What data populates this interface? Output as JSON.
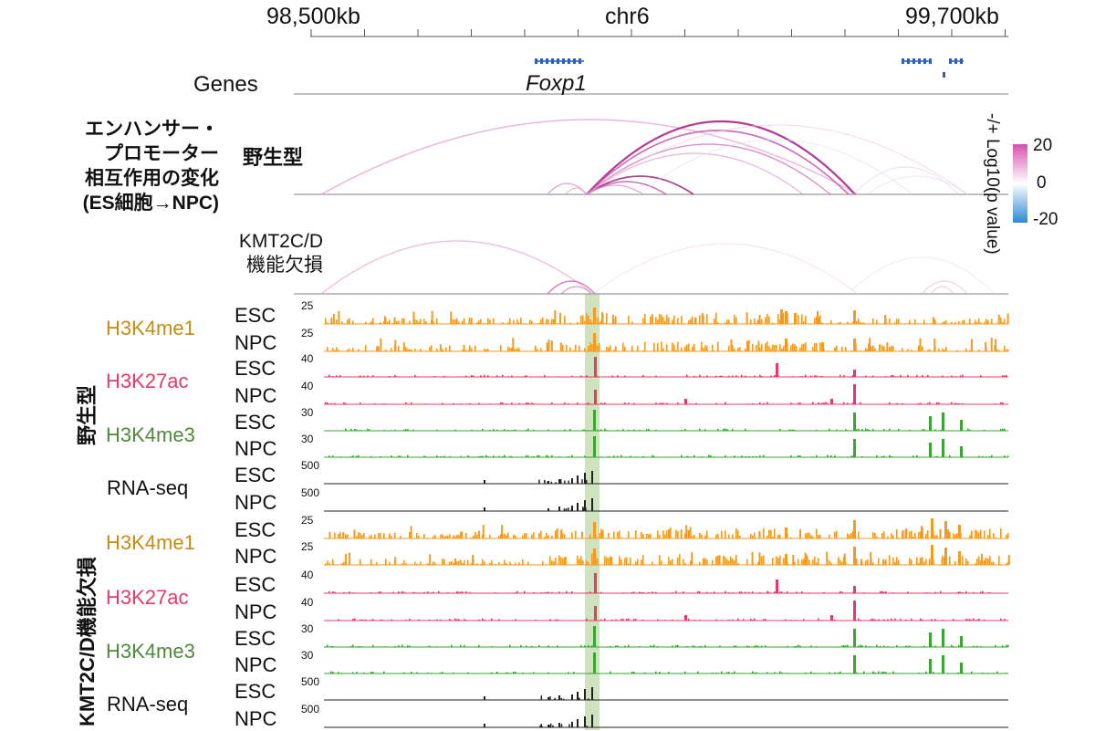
{
  "chrom": "chr6",
  "coords": {
    "left": "98,500kb",
    "right": "99,700kb"
  },
  "genes": {
    "track_label": "Genes",
    "gene_name": "Foxp1"
  },
  "title": [
    "エンハンサー・",
    "プロモーター",
    "相互作用の変化",
    "(ES細胞→NPC)"
  ],
  "arc_tracks": {
    "wt_label": "野生型",
    "ko_label": [
      "KMT2C/D",
      "機能欠損"
    ]
  },
  "legend": {
    "title": "-/+ Log10(p value)",
    "ticks": [
      "20",
      "0",
      "-20"
    ],
    "colors": {
      "pos": "#d84fb0",
      "mid": "#ffffff",
      "neg": "#2f88d6"
    }
  },
  "groups": {
    "wt": "野生型",
    "ko": "KMT2C/D機能欠損"
  },
  "colors": {
    "H3K4me1": "#f29a22",
    "H3K27ac": "#e8386a",
    "H3K4me3": "#3aa532",
    "RNA-seq": "#222222",
    "highlight": "#cfe3bf"
  },
  "cells": {
    "esc": "ESC",
    "npc": "NPC"
  },
  "marks": {
    "h3k4me1": "H3K4me1",
    "h3k27ac": "H3K27ac",
    "h3k4me3": "H3K4me3",
    "rnaseq": "RNA-seq"
  },
  "scales": {
    "h3k4me1": "25",
    "h3k27ac": "40",
    "h3k4me3": "30",
    "rnaseq": "500"
  },
  "mark_label_colors": {
    "h3k4me1": "#c78b12",
    "h3k27ac": "#e8386a",
    "h3k4me3": "#4e8a3a",
    "rnaseq": "#111111"
  }
}
